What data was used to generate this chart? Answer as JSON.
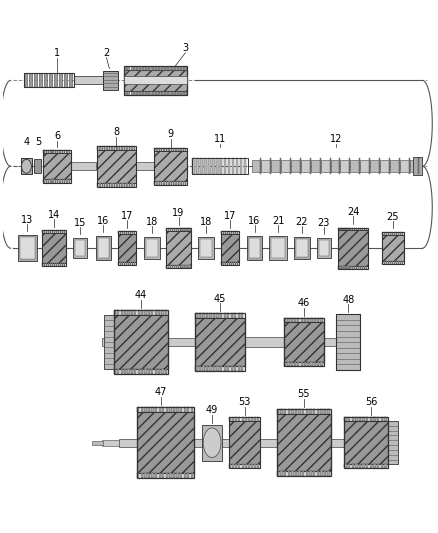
{
  "bg_color": "#ffffff",
  "fig_width": 4.38,
  "fig_height": 5.33,
  "dpi": 100,
  "lc": "#222222",
  "label_fs": 7.0,
  "gear_dark": "#666666",
  "gear_mid": "#999999",
  "gear_light": "#cccccc",
  "shaft_color": "#bbbbbb"
}
